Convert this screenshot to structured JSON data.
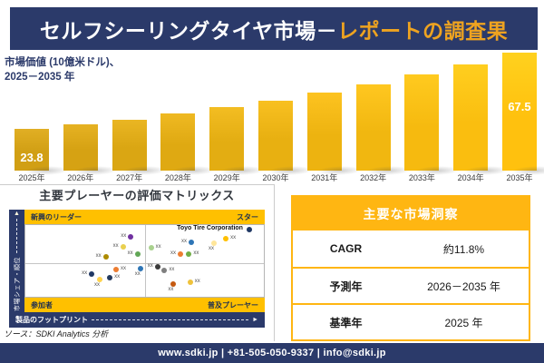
{
  "header": {
    "title_main": "セルフシーリングタイヤ市場－",
    "title_accent": "レポートの調査果"
  },
  "chart_data": [
    {
      "type": "bar",
      "title_line1": "市場価値 (10億米ドル)、",
      "title_line2": "2025－2035 年",
      "categories": [
        "2025年",
        "2026年",
        "2027年",
        "2028年",
        "2029年",
        "2030年",
        "2031年",
        "2032年",
        "2033年",
        "2034年",
        "2035年"
      ],
      "values": [
        23.8,
        26.4,
        29.3,
        32.5,
        36.1,
        40.1,
        44.5,
        49.4,
        54.8,
        60.8,
        67.5
      ],
      "bar_labels": [
        {
          "index": 0,
          "text": "23.8",
          "pos": "bottom"
        },
        {
          "index": 10,
          "text": "67.5",
          "pos": "upper"
        }
      ],
      "ylim": [
        0,
        67.5
      ],
      "bar_color_start": "#D19F14",
      "bar_color_end": "#FFC10E",
      "grid": "off",
      "legend": "none"
    },
    {
      "type": "scatter",
      "title": "主要プレーヤーの評価マトリックス",
      "x_axis": "製品のフットプリント",
      "y_axis": "市場シェア・順位",
      "quadrants": {
        "top_left": "新興のリーダー",
        "top_right": "スター",
        "bottom_left": "参加者",
        "bottom_right": "普及プレーヤー"
      },
      "highlight_company": "Toyo Tire Corporation",
      "points": [
        {
          "x": 44.2,
          "y": 16.4,
          "color": "#7030A0",
          "label": "xx",
          "label_pos": "left"
        },
        {
          "x": 40.9,
          "y": 30.5,
          "color": "#E9D04F",
          "label": "xx",
          "label_pos": "left"
        },
        {
          "x": 33.7,
          "y": 44.1,
          "color": "#AD8B00",
          "label": "xx",
          "label_pos": "left"
        },
        {
          "x": 47.0,
          "y": 41.1,
          "color": "#61A656",
          "label": "xx",
          "label_pos": "left"
        },
        {
          "x": 52.7,
          "y": 31.7,
          "color": "#A9D18E",
          "label": "xx",
          "label_pos": "right"
        },
        {
          "x": 69.6,
          "y": 24.3,
          "color": "#2E75B6",
          "label": "xx",
          "label_pos": "left"
        },
        {
          "x": 93.9,
          "y": 6.2,
          "color": "#1F3864",
          "label": "Toyo Tire Corporation",
          "label_pos": "toyo"
        },
        {
          "x": 84.1,
          "y": 18.5,
          "color": "#FFC000",
          "label": "xx",
          "label_pos": "right"
        },
        {
          "x": 79.1,
          "y": 25.6,
          "color": "#FFE699",
          "label": "xx",
          "label_pos": "below"
        },
        {
          "x": 65.0,
          "y": 41.1,
          "color": "#ED7D31",
          "label": "xx",
          "label_pos": "left"
        },
        {
          "x": 68.6,
          "y": 39.9,
          "color": "#70AD47",
          "label": "xx",
          "label_pos": "right"
        },
        {
          "x": 27.8,
          "y": 67.9,
          "color": "#1F3864",
          "label": "xx",
          "label_pos": "left"
        },
        {
          "x": 38.0,
          "y": 61.7,
          "color": "#ED7D31",
          "label": "xx",
          "label_pos": "right"
        },
        {
          "x": 35.4,
          "y": 72.8,
          "color": "#243A5E",
          "label": "xx",
          "label_pos": "right"
        },
        {
          "x": 31.2,
          "y": 76.5,
          "color": "#FFD34D",
          "label": "xx",
          "label_pos": "below"
        },
        {
          "x": 48.2,
          "y": 60.9,
          "color": "#2E75B6",
          "label": "xx",
          "label_pos": "below"
        },
        {
          "x": 55.4,
          "y": 57.7,
          "color": "#3B3B3B",
          "label": "xx",
          "label_pos": "left"
        },
        {
          "x": 58.3,
          "y": 63.3,
          "color": "#7F7F7F",
          "label": "xx",
          "label_pos": "right"
        },
        {
          "x": 62.1,
          "y": 82.3,
          "color": "#C55A11",
          "label": "xx",
          "label_pos": "below"
        },
        {
          "x": 69.1,
          "y": 79.9,
          "color": "#EFC23B",
          "label": "xx",
          "label_pos": "right"
        }
      ]
    }
  ],
  "insights": {
    "title": "主要な市場洞察",
    "rows": [
      {
        "label": "CAGR",
        "value": "約11.8%"
      },
      {
        "label": "予測年",
        "value": "2026－2035 年"
      },
      {
        "label": "基準年",
        "value": "2025 年"
      }
    ]
  },
  "source": {
    "text": "ソース：SDKI Analytics 分析"
  },
  "footer": {
    "text": "www.sdki.jp | +81-505-050-9337 | info@sdki.jp"
  },
  "colors": {
    "navy": "#2B3A6A",
    "title_accent": "#EEA320",
    "matrix_band_gold": "#FFC000",
    "table_gold": "#FFB612",
    "bar_gradient_start": "#D19F14",
    "bar_gradient_end": "#FFC10E"
  }
}
